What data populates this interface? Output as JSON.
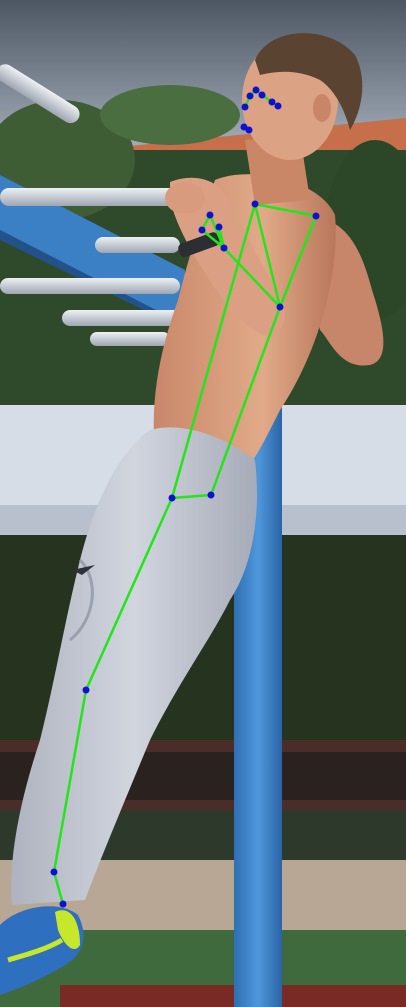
{
  "scene": {
    "subject": "athlete-pull-up",
    "pose_overlay": {
      "line_color": "#22e61a",
      "point_color": "#1010d0",
      "keypoint_names": [
        "nose",
        "left-eye",
        "right-eye",
        "left-ear",
        "right-ear",
        "mouth-left",
        "mouth-right",
        "left-shoulder",
        "right-shoulder",
        "left-elbow",
        "right-elbow",
        "left-wrist",
        "right-wrist",
        "left-hip",
        "right-hip",
        "left-knee",
        "left-ankle",
        "left-foot"
      ]
    },
    "colors": {
      "sky": "#8a98a8",
      "roof": "#c8704a",
      "foliage": "#2f4a2a",
      "banner": "#d6dde6",
      "pole": "#3d82c8",
      "bars": "#c9ced6",
      "skin": "#d59a78",
      "pants": "#c3c7d1",
      "shoe": "#2f6fc0",
      "shoe_accent": "#c7e82a",
      "ground": "#3f6a3d"
    }
  }
}
